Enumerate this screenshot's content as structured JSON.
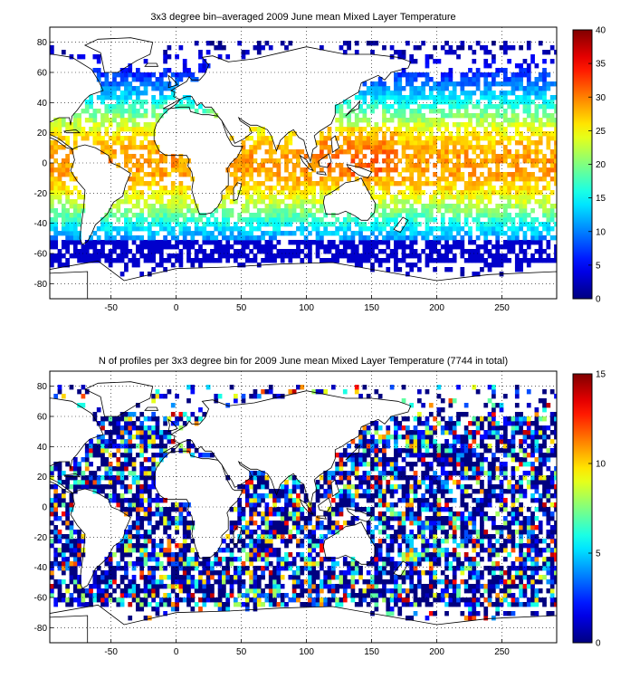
{
  "panels": [
    {
      "title": "3x3 degree bin–averaged 2009 June mean Mixed Layer Temperature",
      "colorbar": {
        "min": 0,
        "max": 40,
        "ticks": [
          "0",
          "5",
          "10",
          "15",
          "20",
          "25",
          "30",
          "35",
          "40"
        ]
      },
      "x_ticks": [
        "-50",
        "0",
        "50",
        "100",
        "150",
        "200",
        "250"
      ],
      "y_ticks": [
        "80",
        "60",
        "40",
        "20",
        "0",
        "-20",
        "-40",
        "-60",
        "-80"
      ],
      "grid": "dotted",
      "colormap": "jet",
      "x_range": [
        -97,
        292
      ],
      "y_range": [
        -90,
        90
      ],
      "field": "temperature"
    },
    {
      "title": "N of profiles per 3x3 degree bin for 2009 June mean Mixed Layer Temperature  (7744 in total)",
      "colorbar": {
        "min": 0,
        "max": 15,
        "ticks": [
          "0",
          "5",
          "10",
          "15"
        ]
      },
      "x_ticks": [
        "-50",
        "0",
        "50",
        "100",
        "150",
        "200",
        "250"
      ],
      "y_ticks": [
        "80",
        "60",
        "40",
        "20",
        "0",
        "-20",
        "-40",
        "-60",
        "-80"
      ],
      "grid": "dotted",
      "colormap": "jet",
      "x_range": [
        -97,
        292
      ],
      "y_range": [
        -90,
        90
      ],
      "field": "count"
    }
  ]
}
